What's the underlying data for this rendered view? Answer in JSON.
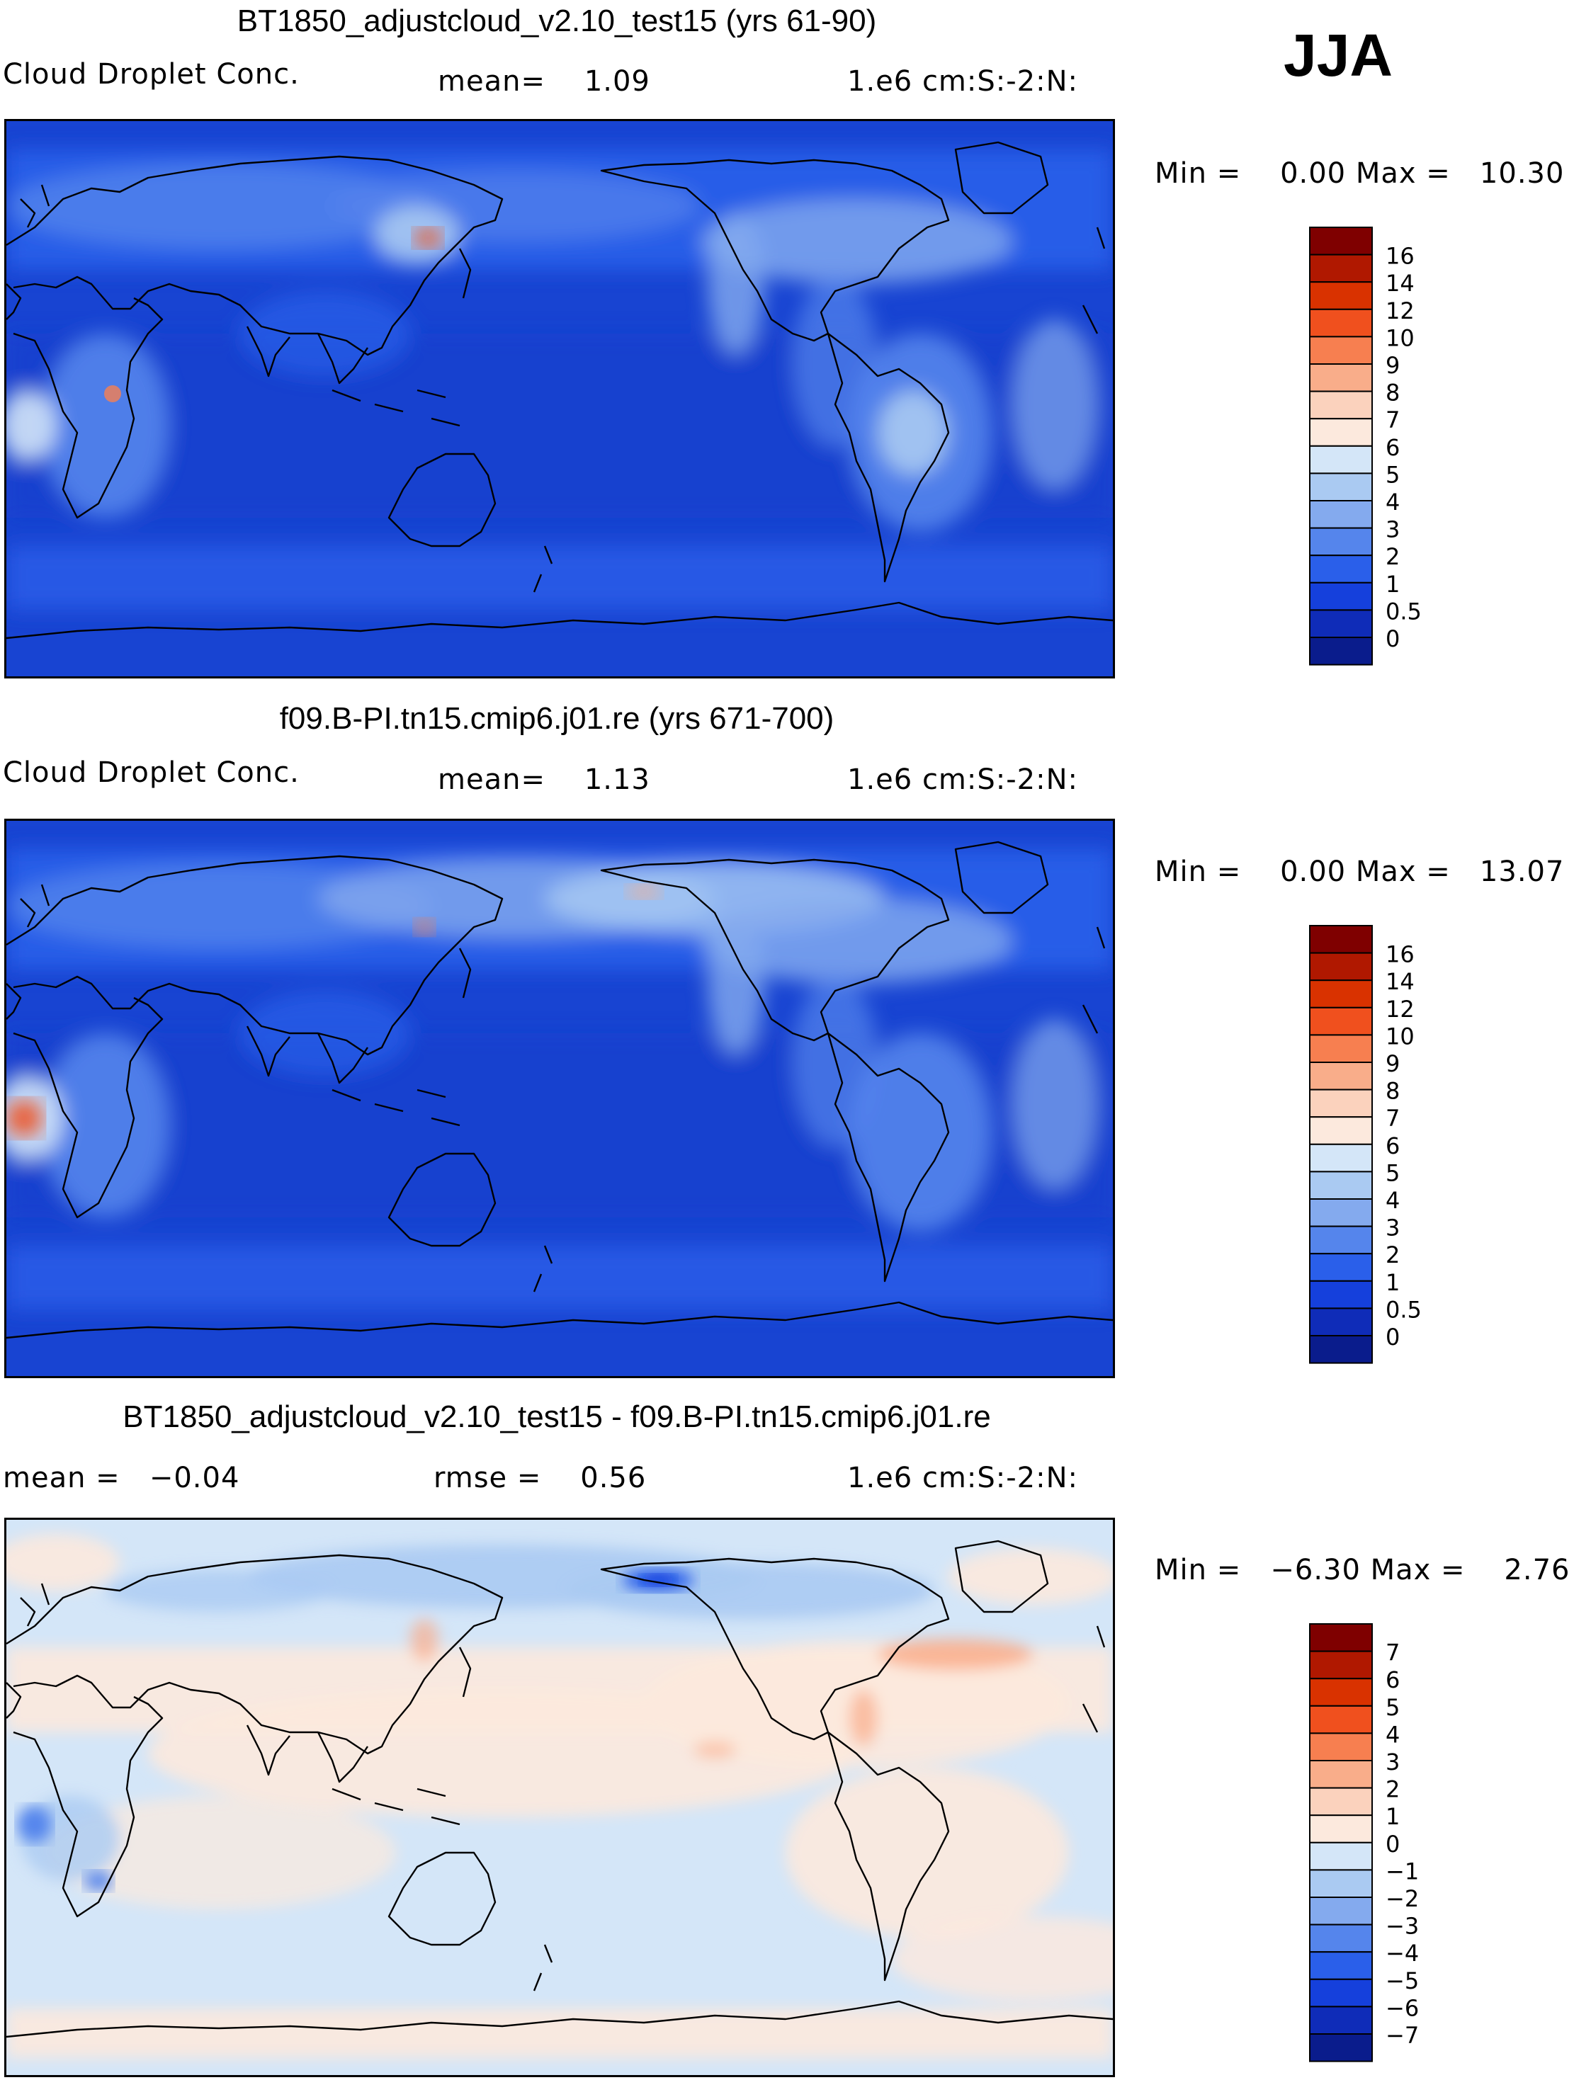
{
  "season": "JJA",
  "panels": [
    {
      "id": "test",
      "title": "BT1850_adjustcloud_v2.10_test15 (yrs 61-90)",
      "left_label": "Cloud Droplet Conc.",
      "mid_label": "mean=    1.09",
      "right_label": "1.e6 cm:S:-2:N:",
      "minmax": "Min =    0.00 Max =   10.30",
      "colorbar": {
        "labels": [
          "16",
          "14",
          "12",
          "10",
          "9",
          "8",
          "7",
          "6",
          "5",
          "4",
          "3",
          "2",
          "1",
          "0.5",
          "0"
        ],
        "colors": [
          "#7f0000",
          "#b01800",
          "#d93200",
          "#f0501e",
          "#f77f50",
          "#f9ad8a",
          "#fbd2bd",
          "#fce9dd",
          "#d4e6f8",
          "#aacaf2",
          "#84aaee",
          "#5585ec",
          "#2a5fea",
          "#1540dc",
          "#0f2cb8",
          "#0a1c8c"
        ]
      }
    },
    {
      "id": "control",
      "title": "f09.B-PI.tn15.cmip6.j01.re (yrs 671-700)",
      "left_label": "Cloud Droplet Conc.",
      "mid_label": "mean=    1.13",
      "right_label": "1.e6 cm:S:-2:N:",
      "minmax": "Min =    0.00 Max =   13.07",
      "colorbar": {
        "labels": [
          "16",
          "14",
          "12",
          "10",
          "9",
          "8",
          "7",
          "6",
          "5",
          "4",
          "3",
          "2",
          "1",
          "0.5",
          "0"
        ],
        "colors": [
          "#7f0000",
          "#b01800",
          "#d93200",
          "#f0501e",
          "#f77f50",
          "#f9ad8a",
          "#fbd2bd",
          "#fce9dd",
          "#d4e6f8",
          "#aacaf2",
          "#84aaee",
          "#5585ec",
          "#2a5fea",
          "#1540dc",
          "#0f2cb8",
          "#0a1c8c"
        ]
      }
    },
    {
      "id": "diff",
      "title": "BT1850_adjustcloud_v2.10_test15 - f09.B-PI.tn15.cmip6.j01.re",
      "left_label": "mean =   −0.04",
      "mid_label": "rmse =    0.56",
      "right_label": "1.e6 cm:S:-2:N:",
      "minmax": "Min =   −6.30 Max =    2.76",
      "colorbar": {
        "labels": [
          "7",
          "6",
          "5",
          "4",
          "3",
          "2",
          "1",
          "0",
          "−1",
          "−2",
          "−3",
          "−4",
          "−5",
          "−6",
          "−7"
        ],
        "colors": [
          "#7f0000",
          "#b01800",
          "#d93200",
          "#f0501e",
          "#f77f50",
          "#f9ad8a",
          "#fbd2bd",
          "#fce9dd",
          "#d4e6f8",
          "#aacaf2",
          "#84aaee",
          "#5585ec",
          "#2a5fea",
          "#1540dc",
          "#0f2cb8",
          "#0a1c8c"
        ]
      }
    }
  ]
}
